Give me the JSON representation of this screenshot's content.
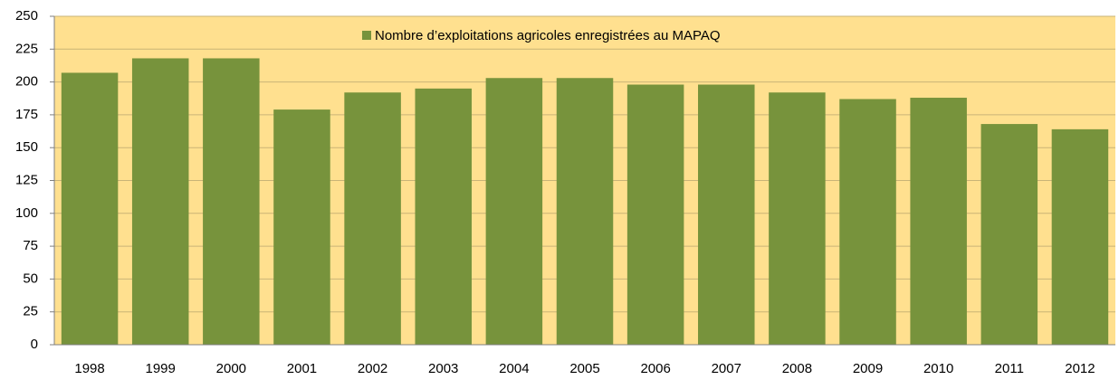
{
  "chart_data": {
    "type": "bar",
    "categories": [
      "1998",
      "1999",
      "2000",
      "2001",
      "2002",
      "2003",
      "2004",
      "2005",
      "2006",
      "2007",
      "2008",
      "2009",
      "2010",
      "2011",
      "2012"
    ],
    "series": [
      {
        "name": "Nombre d’exploitations agricoles enregistrées au MAPAQ",
        "color": "#77933c",
        "values": [
          207,
          218,
          218,
          179,
          192,
          195,
          203,
          203,
          198,
          198,
          192,
          187,
          188,
          168,
          164
        ]
      }
    ],
    "ylim": [
      0,
      250
    ],
    "yticks": [
      0,
      25,
      50,
      75,
      100,
      125,
      150,
      175,
      200,
      225,
      250
    ],
    "grid": true,
    "legend": "top",
    "background": "#ffe08f"
  }
}
